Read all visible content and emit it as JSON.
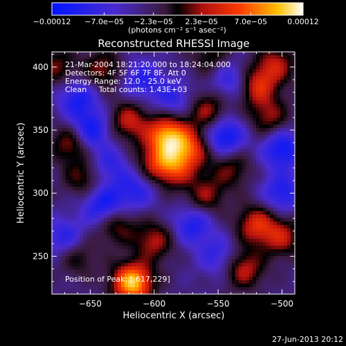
{
  "chart_data": {
    "type": "heatmap",
    "title": "Reconstructed RHESSI Image",
    "xlabel": "Heliocentric X (arcsec)",
    "ylabel": "Heliocentric Y (arcsec)",
    "xlim": [
      -680,
      -490
    ],
    "ylim": [
      220,
      412
    ],
    "x_ticks": [
      -650,
      -600,
      -550,
      -500
    ],
    "x_tick_labels": [
      "−650",
      "−600",
      "−550",
      "−500"
    ],
    "y_ticks": [
      250,
      300,
      350,
      400
    ],
    "y_tick_labels": [
      "250",
      "300",
      "350",
      "400"
    ],
    "colorbar": {
      "range": [
        -0.00012,
        0.00012
      ],
      "tick_values": [
        -0.00012,
        -7e-05,
        -2.3e-05,
        2.3e-05,
        7e-05,
        0.00012
      ],
      "tick_labels": [
        "−0.00012",
        "−7.0e−05",
        "−2.3e−05",
        "2.3e−05",
        "7.0e−05",
        "0.00012"
      ],
      "label": "(photons cm⁻² s⁻¹ asec⁻²)"
    },
    "annotations": [
      "21-Mar-2004 18:21:20.000 to 18:24:04.000",
      "Detectors: 4F 5F 6F 7F 8F, Att 0",
      "Energy Range: 12.0 - 25.0 keV",
      "Clean     Total counts: 1.43E+03"
    ],
    "peak_label": "Position of Peak: [-617,229]",
    "peak": [
      -617,
      229
    ],
    "sources": [
      {
        "x": -617,
        "y": 229,
        "v": 1.0
      },
      {
        "x": -590,
        "y": 346,
        "v": 0.85
      },
      {
        "x": -572,
        "y": 335,
        "v": 0.6
      },
      {
        "x": -585,
        "y": 320,
        "v": 0.55
      },
      {
        "x": -600,
        "y": 325,
        "v": 0.4
      },
      {
        "x": -620,
        "y": 357,
        "v": 0.5
      },
      {
        "x": -558,
        "y": 365,
        "v": 0.45
      },
      {
        "x": -520,
        "y": 385,
        "v": 0.55
      },
      {
        "x": -510,
        "y": 360,
        "v": 0.4
      },
      {
        "x": -505,
        "y": 402,
        "v": 0.45
      },
      {
        "x": -665,
        "y": 340,
        "v": 0.45
      },
      {
        "x": -655,
        "y": 312,
        "v": 0.35
      },
      {
        "x": -560,
        "y": 298,
        "v": 0.4
      },
      {
        "x": -540,
        "y": 320,
        "v": 0.35
      },
      {
        "x": -520,
        "y": 275,
        "v": 0.55
      },
      {
        "x": -500,
        "y": 265,
        "v": 0.45
      },
      {
        "x": -530,
        "y": 240,
        "v": 0.5
      },
      {
        "x": -660,
        "y": 250,
        "v": 0.3
      },
      {
        "x": -630,
        "y": 275,
        "v": 0.4
      },
      {
        "x": -600,
        "y": 262,
        "v": 0.45
      },
      {
        "x": -640,
        "y": 398,
        "v": 0.4
      },
      {
        "x": -676,
        "y": 400,
        "v": 0.35
      },
      {
        "x": -555,
        "y": 408,
        "v": 0.3
      },
      {
        "x": -650,
        "y": 350,
        "v": -0.55
      },
      {
        "x": -545,
        "y": 345,
        "v": -0.6
      },
      {
        "x": -500,
        "y": 335,
        "v": -0.55
      },
      {
        "x": -640,
        "y": 290,
        "v": -0.55
      },
      {
        "x": -570,
        "y": 275,
        "v": -0.45
      },
      {
        "x": -660,
        "y": 375,
        "v": -0.45
      },
      {
        "x": -610,
        "y": 390,
        "v": -0.4
      },
      {
        "x": -540,
        "y": 390,
        "v": -0.4
      },
      {
        "x": -585,
        "y": 375,
        "v": -0.35
      },
      {
        "x": -615,
        "y": 302,
        "v": -0.4
      },
      {
        "x": -550,
        "y": 250,
        "v": -0.35
      },
      {
        "x": -670,
        "y": 265,
        "v": -0.4
      },
      {
        "x": -500,
        "y": 300,
        "v": -0.45
      },
      {
        "x": -635,
        "y": 322,
        "v": -0.35
      }
    ],
    "colormap": "RHESSI blue-purple-red-yellow-white"
  },
  "footer": {
    "timestamp": "27-Jun-2013 20:12"
  }
}
